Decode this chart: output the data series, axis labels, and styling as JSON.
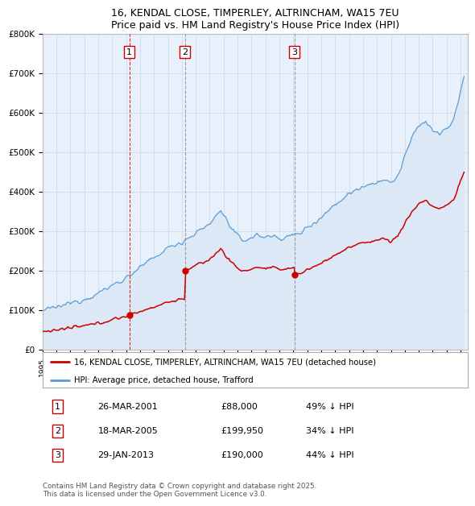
{
  "title": "16, KENDAL CLOSE, TIMPERLEY, ALTRINCHAM, WA15 7EU",
  "subtitle": "Price paid vs. HM Land Registry's House Price Index (HPI)",
  "xlim_start": 1995.0,
  "xlim_end": 2025.5,
  "ylim": [
    0,
    800000
  ],
  "yticks": [
    0,
    100000,
    200000,
    300000,
    400000,
    500000,
    600000,
    700000,
    800000
  ],
  "ytick_labels": [
    "£0",
    "£100K",
    "£200K",
    "£300K",
    "£400K",
    "£500K",
    "£600K",
    "£700K",
    "£800K"
  ],
  "sale_dates": [
    2001.23,
    2005.22,
    2013.08
  ],
  "sale_prices": [
    88000,
    199950,
    190000
  ],
  "sale_labels": [
    "1",
    "2",
    "3"
  ],
  "sale_color": "#cc0000",
  "vline_colors": [
    "#cc0000",
    "#888888",
    "#888888"
  ],
  "hpi_fill_color": "#dce8f5",
  "hpi_line_color": "#5b9bd5",
  "price_line_color": "#cc0000",
  "legend_entry1": "16, KENDAL CLOSE, TIMPERLEY, ALTRINCHAM, WA15 7EU (detached house)",
  "legend_entry2": "HPI: Average price, detached house, Trafford",
  "table_rows": [
    [
      "1",
      "26-MAR-2001",
      "£88,000",
      "49% ↓ HPI"
    ],
    [
      "2",
      "18-MAR-2005",
      "£199,950",
      "34% ↓ HPI"
    ],
    [
      "3",
      "29-JAN-2013",
      "£190,000",
      "44% ↓ HPI"
    ]
  ],
  "footnote": "Contains HM Land Registry data © Crown copyright and database right 2025.\nThis data is licensed under the Open Government Licence v3.0.",
  "bg_color": "#e8f0fb",
  "fig_bg": "#ffffff"
}
